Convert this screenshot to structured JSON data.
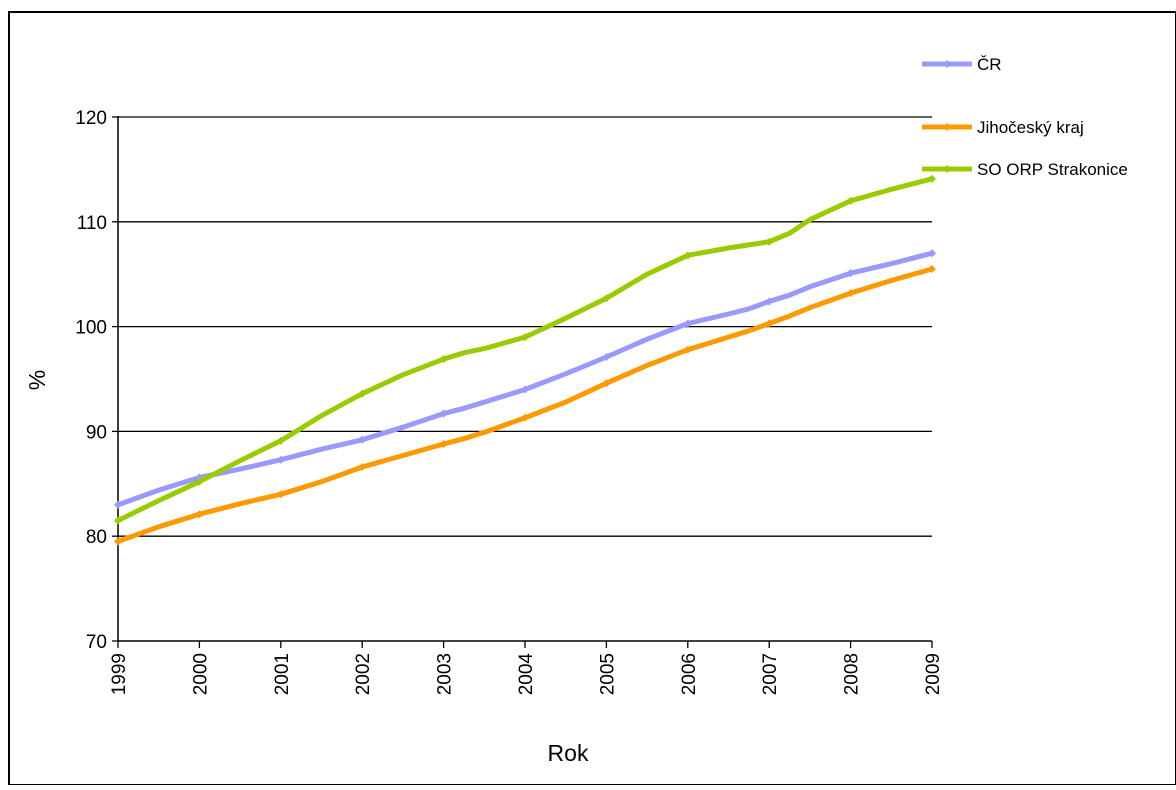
{
  "chart_data": {
    "type": "line",
    "title": "",
    "xlabel": "Rok",
    "ylabel": "%",
    "ylim": [
      70,
      120
    ],
    "yticks": [
      70,
      80,
      90,
      100,
      110,
      120
    ],
    "grid": "horizontal",
    "legend_position": "top-right",
    "categories": [
      "1999",
      "2000",
      "2001",
      "2002",
      "2003",
      "2004",
      "2005",
      "2006",
      "2007",
      "2008",
      "2009"
    ],
    "x": [
      1999,
      1999.5,
      2000,
      2000.5,
      2001,
      2001.5,
      2002,
      2002.5,
      2003,
      2003.25,
      2003.5,
      2004,
      2004.5,
      2005,
      2005.5,
      2006,
      2006.5,
      2006.75,
      2007,
      2007.25,
      2007.5,
      2008,
      2008.5,
      2009
    ],
    "series": [
      {
        "name": "ČR",
        "color": "#9999ff",
        "values": [
          83.0,
          84.4,
          85.6,
          86.4,
          87.3,
          88.3,
          89.2,
          90.4,
          91.7,
          92.2,
          92.8,
          94.0,
          95.5,
          97.1,
          98.8,
          100.3,
          101.2,
          101.7,
          102.4,
          103.0,
          103.8,
          105.1,
          106.0,
          107.0
        ]
      },
      {
        "name": "Jihočeský kraj",
        "color": "#ff9900",
        "values": [
          79.5,
          80.9,
          82.1,
          83.1,
          84.0,
          85.2,
          86.6,
          87.7,
          88.8,
          89.3,
          89.9,
          91.3,
          92.8,
          94.6,
          96.3,
          97.8,
          99.0,
          99.6,
          100.3,
          101.0,
          101.8,
          103.2,
          104.4,
          105.5
        ]
      },
      {
        "name": "SO ORP Strakonice",
        "color": "#99cc00",
        "values": [
          81.5,
          83.4,
          85.2,
          87.2,
          89.1,
          91.5,
          93.6,
          95.4,
          96.9,
          97.5,
          97.9,
          99.0,
          100.8,
          102.7,
          105.0,
          106.8,
          107.5,
          107.8,
          108.1,
          108.9,
          110.2,
          112.0,
          113.1,
          114.1
        ]
      }
    ]
  }
}
